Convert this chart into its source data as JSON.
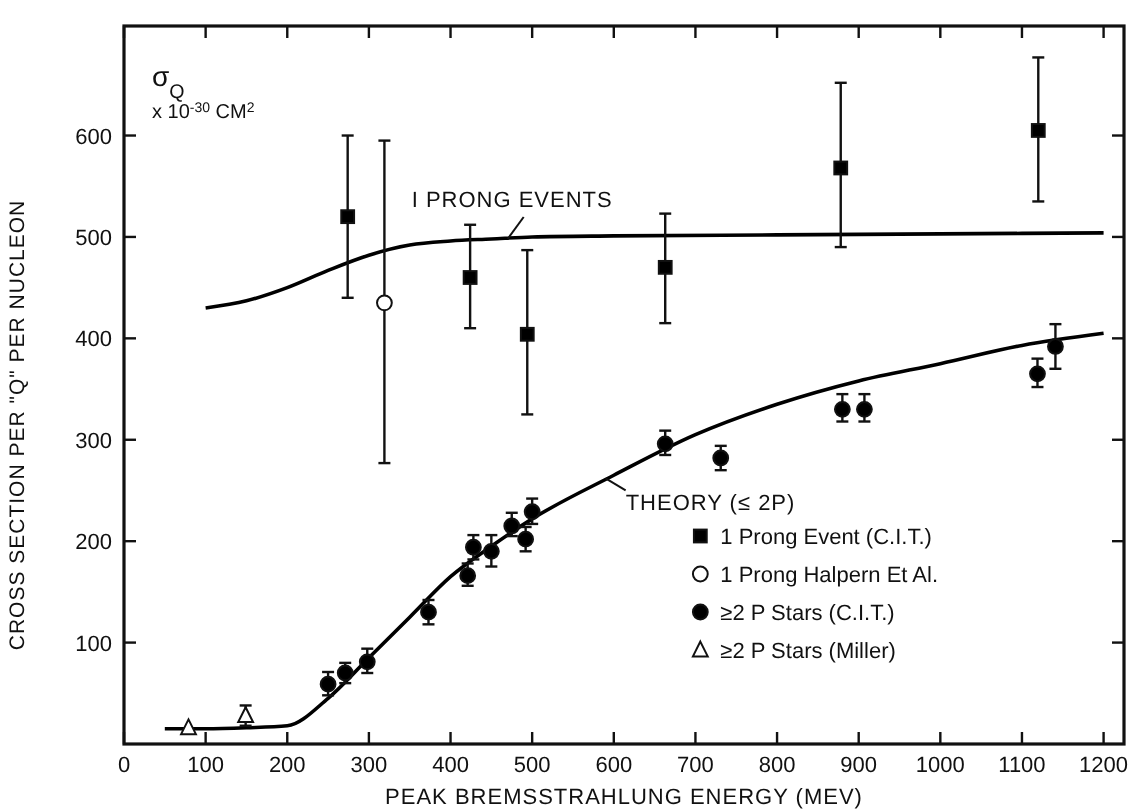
{
  "chart_data": {
    "type": "scatter",
    "xlabel": "PEAK BREMSSTRAHLUNG ENERGY (MEV)",
    "ylabel": "CROSS SECTION PER \"Q\" PER NUCLEON",
    "xlim": [
      0,
      1225
    ],
    "ylim": [
      0,
      708
    ],
    "xticks": [
      0,
      100,
      200,
      300,
      400,
      500,
      600,
      700,
      800,
      900,
      1000,
      1100,
      1200
    ],
    "yticks": [
      100,
      200,
      300,
      400,
      500,
      600
    ],
    "grid": false,
    "legend": "bottom right",
    "annotations": [
      "σ$_{Q}$",
      "x 10$^{-30}$ CM$^{2}$",
      {
        "text": "I PRONG EVENTS",
        "x": 470,
        "y": 498
      },
      {
        "text": "THEORY (≤ 2P)",
        "x": 590,
        "y": 262
      }
    ],
    "series": [
      {
        "type": "line",
        "color": "#000000",
        "marker": "none",
        "x": [
          100,
          150,
          200,
          250,
          300,
          350,
          400,
          450,
          500,
          600,
          800,
          1000,
          1200
        ],
        "values": [
          430,
          437,
          450,
          467,
          482,
          492,
          496,
          498,
          500,
          501,
          502,
          503,
          504
        ]
      },
      {
        "type": "line",
        "color": "#000000",
        "marker": "none",
        "x": [
          50,
          100,
          150,
          200,
          250,
          300,
          350,
          400,
          450,
          500,
          600,
          700,
          800,
          900,
          1000,
          1100,
          1200
        ],
        "values": [
          15,
          15,
          16,
          18,
          45,
          85,
          125,
          165,
          195,
          222,
          265,
          305,
          335,
          358,
          375,
          393,
          405
        ]
      },
      {
        "name": "1 Prong Event (C.I.T.)",
        "color": "#000000",
        "marker": "square",
        "x": [
          274,
          424,
          494,
          663,
          878,
          1120
        ],
        "values": [
          520,
          460,
          404,
          470,
          568,
          605
        ],
        "errors": [
          [
            440,
            600
          ],
          [
            410,
            512
          ],
          [
            325,
            487
          ],
          [
            415,
            523
          ],
          [
            490,
            652
          ],
          [
            535,
            677
          ]
        ]
      },
      {
        "name": "1 Prong Halpern Et Al.",
        "color": "#ffffff",
        "marker": "circle",
        "x": [
          319
        ],
        "values": [
          435
        ],
        "errors": [
          [
            277,
            595
          ]
        ]
      },
      {
        "name": "≥2 P Stars (C.I.T.)",
        "color": "#000000",
        "marker": "circle",
        "x": [
          250,
          271,
          298,
          373,
          421,
          428,
          450,
          475,
          492,
          500,
          663,
          731,
          880,
          907,
          1119,
          1141
        ],
        "values": [
          59,
          70,
          81,
          130,
          166,
          194,
          190,
          215,
          202,
          229,
          296,
          282,
          330,
          330,
          365,
          392
        ],
        "errors": [
          [
            48,
            71
          ],
          [
            60,
            80
          ],
          [
            70,
            94
          ],
          [
            118,
            142
          ],
          [
            156,
            178
          ],
          [
            182,
            206
          ],
          [
            175,
            206
          ],
          [
            205,
            228
          ],
          [
            190,
            214
          ],
          [
            217,
            242
          ],
          [
            285,
            309
          ],
          [
            270,
            294
          ],
          [
            318,
            345
          ],
          [
            318,
            345
          ],
          [
            352,
            380
          ],
          [
            370,
            414
          ]
        ]
      },
      {
        "name": "≥2 P Stars (Miller)",
        "color": "#ffffff",
        "marker": "triangle",
        "x": [
          79,
          149
        ],
        "values": [
          16,
          28
        ],
        "errors": [
          null,
          [
            18,
            38
          ]
        ]
      }
    ]
  }
}
